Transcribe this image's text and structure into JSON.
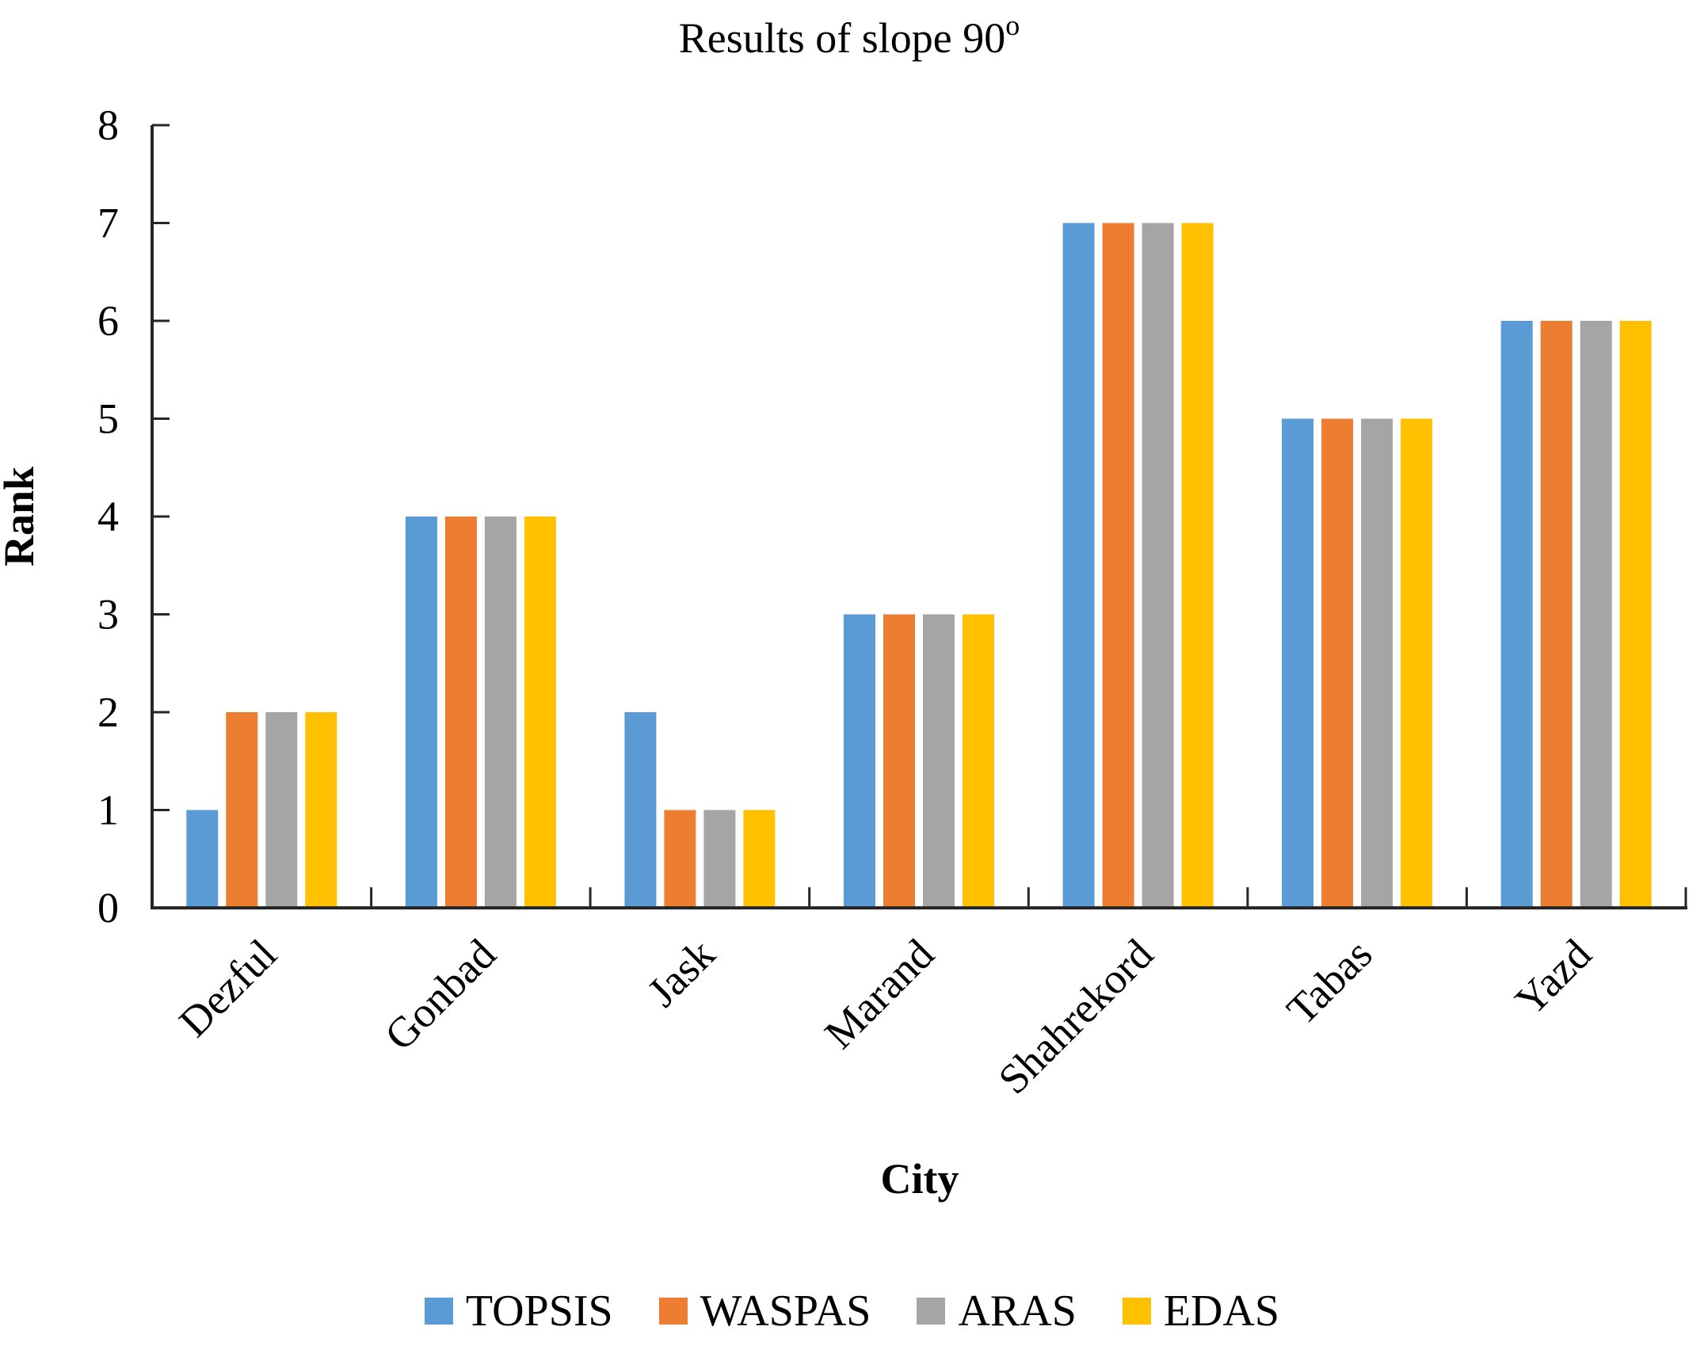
{
  "title": {
    "text": "Results of slope 90",
    "superscript": "o"
  },
  "chart_data": {
    "type": "bar",
    "title": "Results of slope 90°",
    "xlabel": "City",
    "ylabel": "Rank",
    "ylim": [
      0,
      8
    ],
    "ytick_step": 1,
    "grid": false,
    "legend_position": "bottom",
    "categories": [
      "Dezful",
      "Gonbad",
      "Jask",
      "Marand",
      "Shahrekord",
      "Tabas",
      "Yazd"
    ],
    "series": [
      {
        "name": "TOPSIS",
        "color": "#5B9BD5",
        "values": [
          1,
          4,
          2,
          3,
          7,
          5,
          6
        ]
      },
      {
        "name": "WASPAS",
        "color": "#ED7D31",
        "values": [
          2,
          4,
          1,
          3,
          7,
          5,
          6
        ]
      },
      {
        "name": "ARAS",
        "color": "#A5A5A5",
        "values": [
          2,
          4,
          1,
          3,
          7,
          5,
          6
        ]
      },
      {
        "name": "EDAS",
        "color": "#FFC000",
        "values": [
          2,
          4,
          1,
          3,
          7,
          5,
          6
        ]
      }
    ],
    "axis_color": "#262626",
    "text_color": "#000000"
  }
}
